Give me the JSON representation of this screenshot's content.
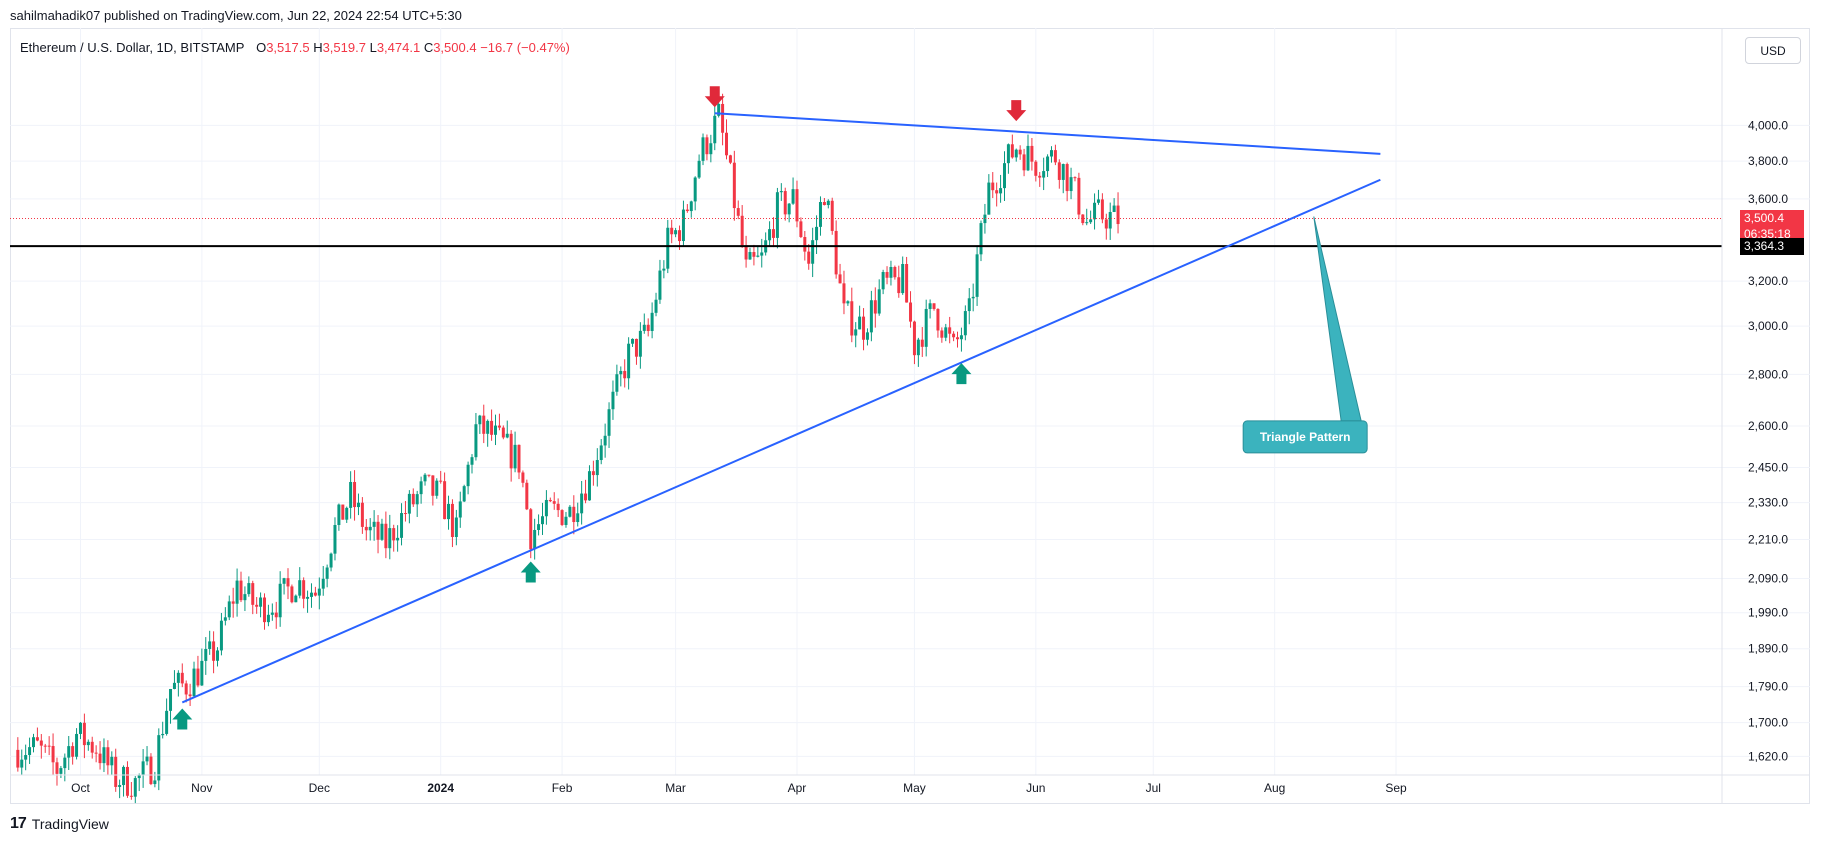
{
  "header": {
    "publisher": "sahilmahadik07 published on TradingView.com, Jun 22, 2024 22:54 UTC+5:30"
  },
  "legend": {
    "symbol": "Ethereum / U.S. Dollar, 1D, BITSTAMP",
    "open_label": "O",
    "open": "3,517.5",
    "high_label": "H",
    "high": "3,519.7",
    "low_label": "L",
    "low": "3,474.1",
    "close_label": "C",
    "close": "3,500.4",
    "change": "−16.7 (−0.47%)"
  },
  "currency": "USD",
  "price_tags": {
    "last": "3,500.4",
    "countdown": "06:35:18",
    "level": "3,364.3"
  },
  "annotation": {
    "label": "Triangle Pattern"
  },
  "footer": {
    "brand": "TradingView"
  },
  "colors": {
    "up": "#089981",
    "down": "#f23645",
    "trendline": "#2962ff",
    "support": "#000000",
    "annotation_bg": "#3bb3be",
    "arrow_up": "#089981",
    "arrow_down": "#e0293a"
  },
  "chart_data": {
    "type": "candlestick",
    "y_scale": "log",
    "ylim": [
      1600,
      4250
    ],
    "y_ticks": [
      1620,
      1700,
      1790,
      1890,
      1990,
      2090,
      2210,
      2330,
      2450,
      2600,
      2800,
      3000,
      3200,
      3600,
      3800,
      4000
    ],
    "y_tick_labels": [
      "1,620.0",
      "1,700.0",
      "1,790.0",
      "1,890.0",
      "1,990.0",
      "2,090.0",
      "2,210.0",
      "2,330.0",
      "2,450.0",
      "2,600.0",
      "2,800.0",
      "3,000.0",
      "3,200.0",
      "3,600.0",
      "3,800.0",
      "4,000.0"
    ],
    "x_tick_labels": [
      {
        "date": "2023-10-01",
        "label": "Oct"
      },
      {
        "date": "2023-11-01",
        "label": "Nov"
      },
      {
        "date": "2023-12-01",
        "label": "Dec"
      },
      {
        "date": "2024-01-01",
        "label": "2024"
      },
      {
        "date": "2024-02-01",
        "label": "Feb"
      },
      {
        "date": "2024-03-01",
        "label": "Mar"
      },
      {
        "date": "2024-04-01",
        "label": "Apr"
      },
      {
        "date": "2024-05-01",
        "label": "May"
      },
      {
        "date": "2024-06-01",
        "label": "Jun"
      },
      {
        "date": "2024-07-01",
        "label": "Jul"
      },
      {
        "date": "2024-08-01",
        "label": "Aug"
      },
      {
        "date": "2024-09-01",
        "label": "Sep"
      }
    ],
    "xlim": [
      "2023-09-13",
      "2024-09-25"
    ],
    "closes": [
      {
        "date": "2023-09-15",
        "close": 1635
      },
      {
        "date": "2023-09-20",
        "close": 1640
      },
      {
        "date": "2023-09-25",
        "close": 1590
      },
      {
        "date": "2023-09-30",
        "close": 1672
      },
      {
        "date": "2023-10-05",
        "close": 1640
      },
      {
        "date": "2023-10-10",
        "close": 1570
      },
      {
        "date": "2023-10-15",
        "close": 1560
      },
      {
        "date": "2023-10-20",
        "close": 1605
      },
      {
        "date": "2023-10-24",
        "close": 1785
      },
      {
        "date": "2023-10-28",
        "close": 1795
      },
      {
        "date": "2023-11-01",
        "close": 1840
      },
      {
        "date": "2023-11-05",
        "close": 1895
      },
      {
        "date": "2023-11-10",
        "close": 2070
      },
      {
        "date": "2023-11-15",
        "close": 2005
      },
      {
        "date": "2023-11-20",
        "close": 2020
      },
      {
        "date": "2023-11-25",
        "close": 2080
      },
      {
        "date": "2023-11-30",
        "close": 2050
      },
      {
        "date": "2023-12-05",
        "close": 2240
      },
      {
        "date": "2023-12-09",
        "close": 2350
      },
      {
        "date": "2023-12-13",
        "close": 2240
      },
      {
        "date": "2023-12-18",
        "close": 2200
      },
      {
        "date": "2023-12-23",
        "close": 2300
      },
      {
        "date": "2023-12-28",
        "close": 2380
      },
      {
        "date": "2024-01-01",
        "close": 2350
      },
      {
        "date": "2024-01-05",
        "close": 2230
      },
      {
        "date": "2024-01-10",
        "close": 2590
      },
      {
        "date": "2024-01-13",
        "close": 2580
      },
      {
        "date": "2024-01-17",
        "close": 2530
      },
      {
        "date": "2024-01-21",
        "close": 2470
      },
      {
        "date": "2024-01-24",
        "close": 2230
      },
      {
        "date": "2024-01-29",
        "close": 2300
      },
      {
        "date": "2024-02-03",
        "close": 2300
      },
      {
        "date": "2024-02-08",
        "close": 2420
      },
      {
        "date": "2024-02-13",
        "close": 2640
      },
      {
        "date": "2024-02-18",
        "close": 2880
      },
      {
        "date": "2024-02-23",
        "close": 2970
      },
      {
        "date": "2024-02-28",
        "close": 3380
      },
      {
        "date": "2024-03-03",
        "close": 3480
      },
      {
        "date": "2024-03-07",
        "close": 3820
      },
      {
        "date": "2024-03-12",
        "close": 4050
      },
      {
        "date": "2024-03-15",
        "close": 3700
      },
      {
        "date": "2024-03-19",
        "close": 3250
      },
      {
        "date": "2024-03-23",
        "close": 3300
      },
      {
        "date": "2024-03-27",
        "close": 3550
      },
      {
        "date": "2024-03-31",
        "close": 3600
      },
      {
        "date": "2024-04-04",
        "close": 3280
      },
      {
        "date": "2024-04-08",
        "close": 3650
      },
      {
        "date": "2024-04-13",
        "close": 3050
      },
      {
        "date": "2024-04-18",
        "close": 3000
      },
      {
        "date": "2024-04-23",
        "close": 3180
      },
      {
        "date": "2024-04-28",
        "close": 3200
      },
      {
        "date": "2024-05-01",
        "close": 2920
      },
      {
        "date": "2024-05-06",
        "close": 3080
      },
      {
        "date": "2024-05-11",
        "close": 2900
      },
      {
        "date": "2024-05-15",
        "close": 3050
      },
      {
        "date": "2024-05-20",
        "close": 3650
      },
      {
        "date": "2024-05-24",
        "close": 3780
      },
      {
        "date": "2024-05-27",
        "close": 3880
      },
      {
        "date": "2024-06-01",
        "close": 3790
      },
      {
        "date": "2024-06-06",
        "close": 3830
      },
      {
        "date": "2024-06-10",
        "close": 3680
      },
      {
        "date": "2024-06-14",
        "close": 3480
      },
      {
        "date": "2024-06-17",
        "close": 3520
      },
      {
        "date": "2024-06-22",
        "close": 3500
      }
    ],
    "horizontal_line": {
      "price": 3364.3
    },
    "trendlines": [
      {
        "from": {
          "date": "2023-10-27",
          "price": 1750
        },
        "to": {
          "date": "2024-08-28",
          "price": 3700
        }
      },
      {
        "from": {
          "date": "2024-03-11",
          "price": 4070
        },
        "to": {
          "date": "2024-08-28",
          "price": 3840
        }
      }
    ],
    "markers": [
      {
        "type": "arrow-up",
        "date": "2023-10-27",
        "price": 1750
      },
      {
        "type": "arrow-up",
        "date": "2024-01-24",
        "price": 2160
      },
      {
        "type": "arrow-up",
        "date": "2024-05-13",
        "price": 2870
      },
      {
        "type": "arrow-down",
        "date": "2024-03-11",
        "price": 4070
      },
      {
        "type": "arrow-down",
        "date": "2024-05-27",
        "price": 3990
      }
    ],
    "callout": {
      "date": "2024-07-26",
      "price": 2560,
      "pointer_date": "2024-08-11",
      "pointer_price": 3510
    }
  }
}
